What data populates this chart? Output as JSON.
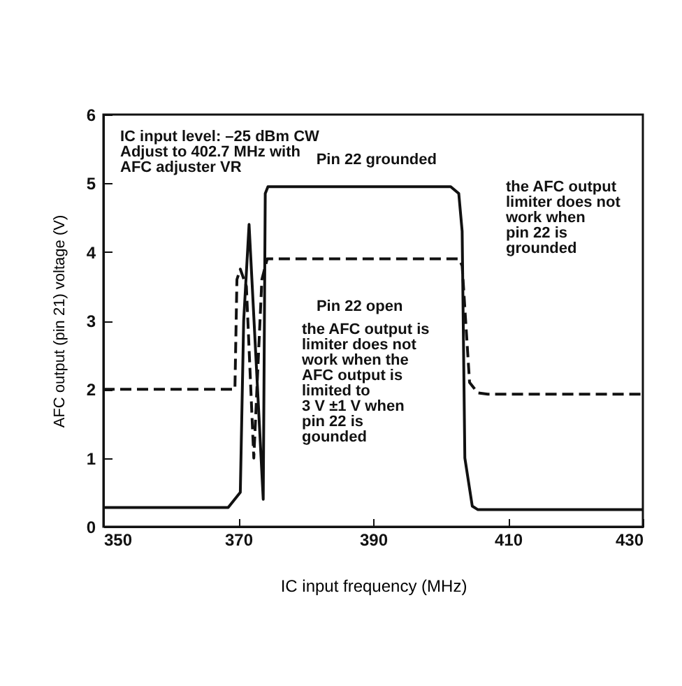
{
  "chart_data": {
    "type": "line",
    "xlabel": "IC input frequency (MHz)",
    "ylabel": "AFC output (pin 21) voltage (V)",
    "xlim": [
      350,
      430
    ],
    "ylim": [
      0,
      6
    ],
    "xticks": [
      350,
      370,
      390,
      410,
      430
    ],
    "yticks": [
      0,
      1,
      2,
      3,
      4,
      5,
      6
    ],
    "grid": false,
    "marker": "none",
    "series": [
      {
        "color": "#111111",
        "line_style": "solid",
        "x": [
          350,
          368.5,
          370.3,
          370.8,
          371.6,
          373.7,
          374.0,
          374.4,
          401.5,
          402.7,
          403.2,
          403.6,
          404.7,
          405.5,
          430
        ],
        "values": [
          0.28,
          0.28,
          0.5,
          3.0,
          4.4,
          0.4,
          4.85,
          4.95,
          4.95,
          4.85,
          4.3,
          1.0,
          0.3,
          0.25,
          0.25
        ]
      },
      {
        "color": "#111111",
        "line_style": "dashed",
        "x": [
          350,
          369.5,
          369.8,
          370.3,
          371.2,
          372.3,
          373.5,
          374.3,
          402.7,
          403.2,
          404.3,
          405.5,
          407,
          430
        ],
        "values": [
          2.0,
          2.0,
          3.6,
          3.75,
          3.5,
          1.0,
          3.6,
          3.9,
          3.9,
          3.8,
          2.1,
          1.95,
          1.93,
          1.93
        ]
      }
    ],
    "annotations": [
      "IC input level: –25 dBm CW\nAdjust to 402.7 MHz with\nAFC adjuster VR",
      {
        "text": "Pin 22 grounded",
        "x": 390.5,
        "y": 4.95
      },
      "the AFC output\nlimiter does not\nwork when\npin 22 is\ngrounded",
      {
        "text": "Pin 22 open",
        "x": 388,
        "y": 3.9
      },
      "the AFC output is\nlimiter does not\nwork when the\nAFC output is\nlimited to\n3 V ±1 V when\npin 22 is\ngounded"
    ]
  }
}
